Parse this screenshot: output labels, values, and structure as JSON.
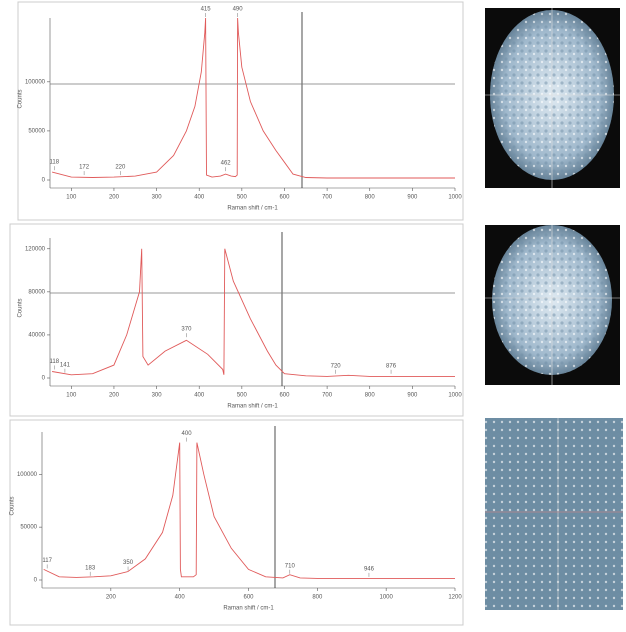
{
  "chart_data": [
    {
      "type": "line",
      "x_label": "Raman shift / cm-1",
      "y_label": "Counts",
      "color": "#e05a5a",
      "xlim": [
        50,
        1000
      ],
      "xticks": [
        100,
        200,
        300,
        400,
        500,
        600,
        700,
        800,
        900,
        1000
      ],
      "ylim": [
        0,
        165000
      ],
      "yticks": [
        0,
        50000,
        100000
      ],
      "x": [
        55,
        100,
        150,
        200,
        250,
        300,
        340,
        370,
        390,
        405,
        413,
        415,
        417,
        430,
        450,
        462,
        475,
        485,
        489,
        490,
        492,
        500,
        520,
        550,
        580,
        600,
        620,
        650,
        700,
        800,
        900,
        1000
      ],
      "values": [
        8000,
        3000,
        2500,
        3000,
        4000,
        8000,
        25000,
        50000,
        75000,
        110000,
        150000,
        165000,
        5000,
        3000,
        4000,
        6000,
        4000,
        3500,
        5000,
        165000,
        150000,
        115000,
        80000,
        50000,
        30000,
        18000,
        6000,
        2500,
        2000,
        2000,
        2000,
        2000
      ],
      "annotations": [
        {
          "text": "118",
          "x": 60,
          "y": 9000
        },
        {
          "text": "172",
          "x": 130,
          "y": 4000
        },
        {
          "text": "220",
          "x": 215,
          "y": 4000
        },
        {
          "text": "415",
          "x": 415,
          "y": 165000
        },
        {
          "text": "462",
          "x": 462,
          "y": 8000
        },
        {
          "text": "490",
          "x": 490,
          "y": 165000
        }
      ]
    },
    {
      "type": "line",
      "x_label": "Raman shift / cm-1",
      "y_label": "Counts",
      "color": "#e05a5a",
      "xlim": [
        50,
        1000
      ],
      "xticks": [
        100,
        200,
        300,
        400,
        500,
        600,
        700,
        800,
        900,
        1000
      ],
      "ylim": [
        0,
        130000
      ],
      "yticks": [
        0,
        40000,
        80000,
        120000
      ],
      "x": [
        55,
        100,
        150,
        200,
        230,
        260,
        265,
        268,
        280,
        320,
        370,
        420,
        455,
        458,
        460,
        480,
        520,
        560,
        580,
        600,
        650,
        700,
        750,
        800,
        900,
        1000
      ],
      "values": [
        6000,
        3000,
        4000,
        12000,
        40000,
        80000,
        120000,
        20000,
        12000,
        25000,
        35000,
        22000,
        8000,
        3000,
        120000,
        90000,
        55000,
        25000,
        12000,
        4000,
        2000,
        1500,
        2500,
        1500,
        1500,
        1500
      ],
      "annotations": [
        {
          "text": "118",
          "x": 60,
          "y": 7000
        },
        {
          "text": "141",
          "x": 85,
          "y": 4000
        },
        {
          "text": "370",
          "x": 370,
          "y": 37000
        },
        {
          "text": "720",
          "x": 720,
          "y": 3000
        },
        {
          "text": "876",
          "x": 850,
          "y": 3000
        }
      ]
    },
    {
      "type": "line",
      "x_label": "Raman shift / cm-1",
      "y_label": "Counts",
      "color": "#e05a5a",
      "xlim": [
        0,
        1200
      ],
      "xticks": [
        200,
        400,
        600,
        800,
        1000,
        1200
      ],
      "ylim": [
        0,
        140000
      ],
      "yticks": [
        0,
        50000,
        100000
      ],
      "x": [
        5,
        50,
        100,
        150,
        200,
        250,
        300,
        350,
        380,
        400,
        402,
        405,
        440,
        448,
        450,
        470,
        500,
        550,
        600,
        650,
        700,
        720,
        750,
        800,
        900,
        1000,
        1100,
        1200
      ],
      "values": [
        10000,
        3000,
        2500,
        3000,
        4000,
        8000,
        20000,
        45000,
        80000,
        130000,
        10000,
        3000,
        3000,
        5000,
        130000,
        100000,
        60000,
        30000,
        10000,
        3000,
        2000,
        5000,
        2000,
        1500,
        1500,
        1500,
        1500,
        1500
      ],
      "annotations": [
        {
          "text": "117",
          "x": 15,
          "y": 10000
        },
        {
          "text": "183",
          "x": 140,
          "y": 3000
        },
        {
          "text": "350",
          "x": 250,
          "y": 8000
        },
        {
          "text": "400",
          "x": 420,
          "y": 130000
        },
        {
          "text": "710",
          "x": 720,
          "y": 5000
        },
        {
          "text": "946",
          "x": 950,
          "y": 2000
        }
      ]
    }
  ]
}
